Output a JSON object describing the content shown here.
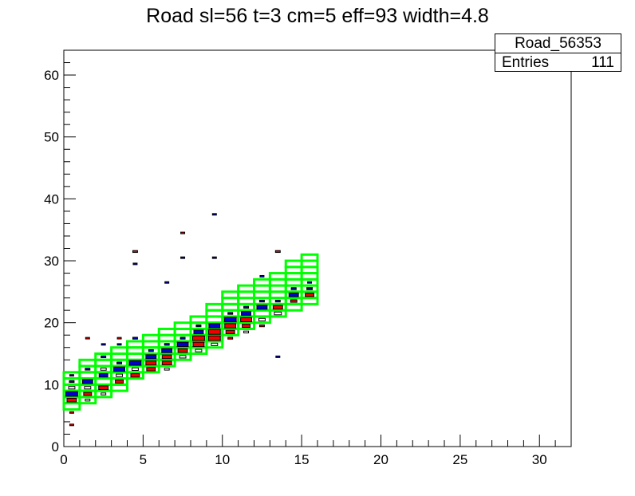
{
  "chart_data": {
    "type": "heatmap",
    "title": "Road sl=56 t=3 cm=5 eff=93 width=4.8",
    "xlim": [
      0,
      32
    ],
    "ylim": [
      0,
      64
    ],
    "x_ticks": [
      0,
      5,
      10,
      15,
      20,
      25,
      30
    ],
    "y_ticks": [
      0,
      10,
      20,
      30,
      40,
      50,
      60
    ],
    "stats": {
      "name": "Road_56353",
      "entries_label": "Entries",
      "entries": "111"
    },
    "colors": {
      "road": "#00ff00",
      "blue": "#0000cc",
      "red": "#ee0000",
      "frame": "#000000"
    },
    "road_windows": [
      {
        "x": 0,
        "y_low": 6,
        "y_high": 12
      },
      {
        "x": 1,
        "y_low": 7,
        "y_high": 14
      },
      {
        "x": 2,
        "y_low": 8,
        "y_high": 15
      },
      {
        "x": 3,
        "y_low": 9,
        "y_high": 16
      },
      {
        "x": 4,
        "y_low": 11,
        "y_high": 17
      },
      {
        "x": 5,
        "y_low": 12,
        "y_high": 18
      },
      {
        "x": 6,
        "y_low": 13,
        "y_high": 19
      },
      {
        "x": 7,
        "y_low": 14,
        "y_high": 20
      },
      {
        "x": 8,
        "y_low": 15,
        "y_high": 21
      },
      {
        "x": 9,
        "y_low": 16,
        "y_high": 23
      },
      {
        "x": 10,
        "y_low": 18,
        "y_high": 25
      },
      {
        "x": 11,
        "y_low": 19,
        "y_high": 26
      },
      {
        "x": 12,
        "y_low": 20,
        "y_high": 27
      },
      {
        "x": 13,
        "y_low": 21,
        "y_high": 28
      },
      {
        "x": 14,
        "y_low": 22,
        "y_high": 30
      },
      {
        "x": 15,
        "y_low": 23,
        "y_high": 31
      }
    ],
    "blue_cells": [
      {
        "x": 0,
        "y": 8,
        "w": 0.75
      },
      {
        "x": 0,
        "y": 10,
        "w": 0.3
      },
      {
        "x": 0,
        "y": 11,
        "w": 0.25
      },
      {
        "x": 1,
        "y": 10,
        "w": 0.65
      },
      {
        "x": 1,
        "y": 12,
        "w": 0.3
      },
      {
        "x": 2,
        "y": 11,
        "w": 0.55
      },
      {
        "x": 2,
        "y": 14,
        "w": 0.3
      },
      {
        "x": 2,
        "y": 16,
        "w": 0.25
      },
      {
        "x": 3,
        "y": 12,
        "w": 0.7
      },
      {
        "x": 3,
        "y": 13,
        "w": 0.3
      },
      {
        "x": 3,
        "y": 16,
        "w": 0.25
      },
      {
        "x": 4,
        "y": 13,
        "w": 0.75
      },
      {
        "x": 4,
        "y": 17,
        "w": 0.3
      },
      {
        "x": 4,
        "y": 29,
        "w": 0.25
      },
      {
        "x": 5,
        "y": 14,
        "w": 0.65
      },
      {
        "x": 5,
        "y": 15,
        "w": 0.3
      },
      {
        "x": 6,
        "y": 15,
        "w": 0.65
      },
      {
        "x": 6,
        "y": 16,
        "w": 0.3
      },
      {
        "x": 6,
        "y": 26,
        "w": 0.25
      },
      {
        "x": 7,
        "y": 16,
        "w": 0.7
      },
      {
        "x": 7,
        "y": 17,
        "w": 0.3
      },
      {
        "x": 7,
        "y": 30,
        "w": 0.25
      },
      {
        "x": 8,
        "y": 18,
        "w": 0.6
      },
      {
        "x": 8,
        "y": 19,
        "w": 0.3
      },
      {
        "x": 9,
        "y": 19,
        "w": 0.7
      },
      {
        "x": 9,
        "y": 30,
        "w": 0.25
      },
      {
        "x": 9,
        "y": 37,
        "w": 0.25
      },
      {
        "x": 10,
        "y": 20,
        "w": 0.75
      },
      {
        "x": 10,
        "y": 21,
        "w": 0.3
      },
      {
        "x": 11,
        "y": 21,
        "w": 0.6
      },
      {
        "x": 11,
        "y": 22,
        "w": 0.3
      },
      {
        "x": 12,
        "y": 22,
        "w": 0.65
      },
      {
        "x": 12,
        "y": 23,
        "w": 0.3
      },
      {
        "x": 12,
        "y": 27,
        "w": 0.25
      },
      {
        "x": 13,
        "y": 23,
        "w": 0.3
      },
      {
        "x": 13,
        "y": 14,
        "w": 0.25
      },
      {
        "x": 14,
        "y": 24,
        "w": 0.6
      },
      {
        "x": 14,
        "y": 25,
        "w": 0.3
      },
      {
        "x": 15,
        "y": 25,
        "w": 0.25
      },
      {
        "x": 15,
        "y": 26,
        "w": 0.25
      }
    ],
    "red_cells": [
      {
        "x": 0,
        "y": 7,
        "w": 0.6
      },
      {
        "x": 0,
        "y": 5,
        "w": 0.25
      },
      {
        "x": 0,
        "y": 3,
        "w": 0.25
      },
      {
        "x": 1,
        "y": 8,
        "w": 0.5
      },
      {
        "x": 1,
        "y": 17,
        "w": 0.25
      },
      {
        "x": 2,
        "y": 9,
        "w": 0.6
      },
      {
        "x": 3,
        "y": 10,
        "w": 0.5
      },
      {
        "x": 3,
        "y": 17,
        "w": 0.25
      },
      {
        "x": 4,
        "y": 11,
        "w": 0.55
      },
      {
        "x": 4,
        "y": 31,
        "w": 0.3
      },
      {
        "x": 5,
        "y": 12,
        "w": 0.55
      },
      {
        "x": 5,
        "y": 13,
        "w": 0.65
      },
      {
        "x": 6,
        "y": 13,
        "w": 0.6
      },
      {
        "x": 6,
        "y": 14,
        "w": 0.6
      },
      {
        "x": 7,
        "y": 15,
        "w": 0.6
      },
      {
        "x": 7,
        "y": 34,
        "w": 0.25
      },
      {
        "x": 8,
        "y": 16,
        "w": 0.7
      },
      {
        "x": 8,
        "y": 17,
        "w": 0.75
      },
      {
        "x": 9,
        "y": 17,
        "w": 0.75
      },
      {
        "x": 9,
        "y": 18,
        "w": 0.75
      },
      {
        "x": 10,
        "y": 18,
        "w": 0.55
      },
      {
        "x": 10,
        "y": 19,
        "w": 0.7
      },
      {
        "x": 10,
        "y": 17,
        "w": 0.3
      },
      {
        "x": 11,
        "y": 20,
        "w": 0.7
      },
      {
        "x": 11,
        "y": 19,
        "w": 0.5
      },
      {
        "x": 12,
        "y": 19,
        "w": 0.3
      },
      {
        "x": 13,
        "y": 22,
        "w": 0.6
      },
      {
        "x": 13,
        "y": 31,
        "w": 0.3
      },
      {
        "x": 14,
        "y": 23,
        "w": 0.4
      },
      {
        "x": 15,
        "y": 24,
        "w": 0.55
      }
    ],
    "empty_cells": [
      {
        "x": 0,
        "y": 9,
        "w": 0.4
      },
      {
        "x": 1,
        "y": 9,
        "w": 0.4
      },
      {
        "x": 1,
        "y": 7,
        "w": 0.3
      },
      {
        "x": 2,
        "y": 8,
        "w": 0.3
      },
      {
        "x": 2,
        "y": 12,
        "w": 0.35
      },
      {
        "x": 3,
        "y": 11,
        "w": 0.4
      },
      {
        "x": 4,
        "y": 12,
        "w": 0.4
      },
      {
        "x": 6,
        "y": 12,
        "w": 0.3
      },
      {
        "x": 7,
        "y": 14,
        "w": 0.4
      },
      {
        "x": 8,
        "y": 15,
        "w": 0.4
      },
      {
        "x": 9,
        "y": 16,
        "w": 0.4
      },
      {
        "x": 11,
        "y": 18,
        "w": 0.3
      },
      {
        "x": 12,
        "y": 20,
        "w": 0.4
      },
      {
        "x": 13,
        "y": 21,
        "w": 0.45
      },
      {
        "x": 14,
        "y": 25,
        "w": 0.3
      },
      {
        "x": 15,
        "y": 25,
        "w": 0.35
      }
    ]
  }
}
